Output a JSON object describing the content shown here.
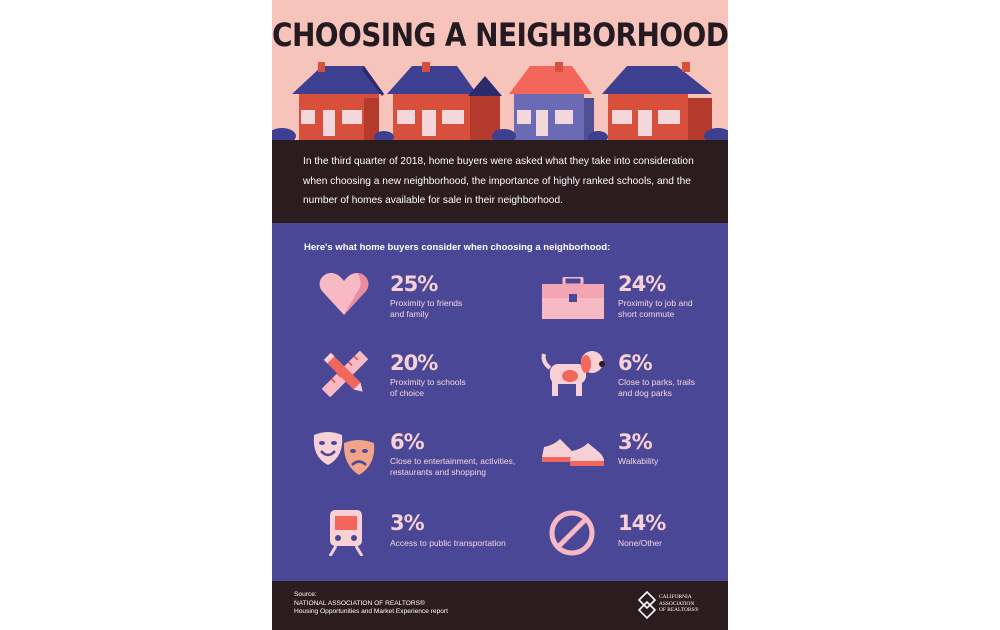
{
  "title": "CHOOSING A NEIGHBORHOOD",
  "intro": "In the third quarter of 2018, home buyers were asked what they take into consideration when choosing a new neighborhood, the importance of highly ranked schools, and the number of homes available for sale in their neighborhood.",
  "lead": "Here's what home buyers consider when choosing a neighborhood:",
  "stats": [
    {
      "percent": "25%",
      "label_1": "Proximity to friends",
      "label_2": "and family",
      "icon": "heart-icon"
    },
    {
      "percent": "24%",
      "label_1": "Proximity to job and",
      "label_2": "short commute",
      "icon": "briefcase-icon"
    },
    {
      "percent": "20%",
      "label_1": "Proximity to schools",
      "label_2": "of choice",
      "icon": "pencil-ruler-icon"
    },
    {
      "percent": "6%",
      "label_1": "Close to parks, trails",
      "label_2": "and dog parks",
      "icon": "dog-icon"
    },
    {
      "percent": "6%",
      "label_1": "Close to entertainment, activities,",
      "label_2": "restaurants and shopping",
      "icon": "theater-masks-icon"
    },
    {
      "percent": "3%",
      "label_1": "Walkability",
      "label_2": "",
      "icon": "sneakers-icon"
    },
    {
      "percent": "3%",
      "label_1": "Access to public transportation",
      "label_2": "",
      "icon": "train-icon"
    },
    {
      "percent": "14%",
      "label_1": "None/Other",
      "label_2": "",
      "icon": "prohibited-icon"
    }
  ],
  "footer": {
    "source_label": "Source:",
    "source_org": "NATIONAL ASSOCIATION OF REALTORS®",
    "source_report": "Housing Opportunities and Market Experience report",
    "logo_line_1": "CALIFORNIA",
    "logo_line_2": "ASSOCIATION",
    "logo_line_3": "OF REALTORS®"
  },
  "colors": {
    "hero_bg": "#f7c4bb",
    "dark_band": "#2a1c1f",
    "main_bg": "#4b4797",
    "accent_pink": "#f7d1d6",
    "house_red": "#d84f3c",
    "roof_navy": "#3d3f91"
  }
}
